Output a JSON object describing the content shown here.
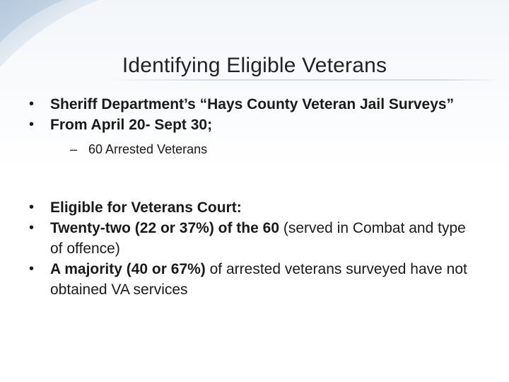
{
  "slide": {
    "title": "Identifying Eligible Veterans",
    "bullet_glyph": "•",
    "dash_glyph": "–",
    "colors": {
      "background_top": "#f3f6f9",
      "background": "#ffffff",
      "corner_accent": "#b9cde0",
      "text": "#1a1a1a"
    },
    "bullets": [
      {
        "bold": "Sheriff Department’s “Hays County Veteran Jail Surveys”",
        "normal": ""
      },
      {
        "bold": "From April 20- Sept 30;",
        "normal": ""
      }
    ],
    "sub_bullet": "60 Arrested Veterans",
    "bullets2": [
      {
        "bold": "Eligible for Veterans Court:",
        "normal": ""
      },
      {
        "bold": "Twenty-two (22 or 37%) of the 60",
        "normal": " (served in Combat and type of offence)"
      },
      {
        "bold": " A majority (40 or 67%)",
        "normal": " of arrested veterans surveyed have not obtained VA services"
      }
    ]
  }
}
